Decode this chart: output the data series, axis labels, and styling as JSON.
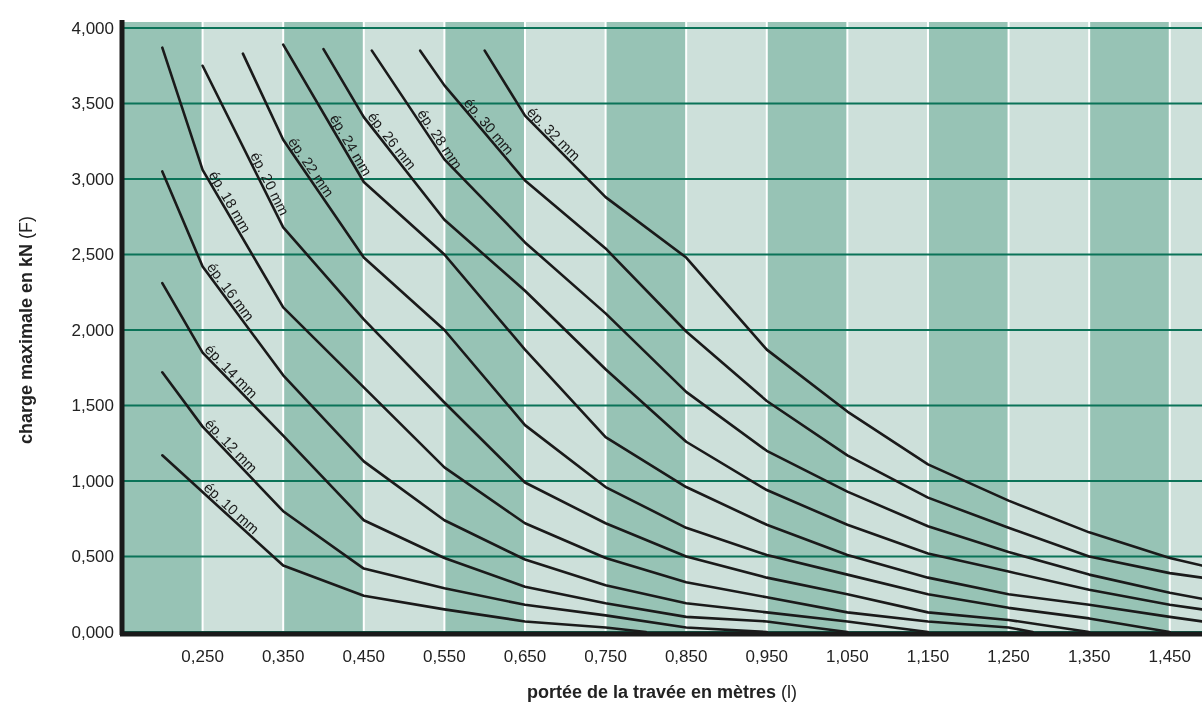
{
  "chart_data": {
    "type": "line",
    "xlabel": "portée de la travée en mètres (l)",
    "ylabel": "charge maximale en kN (F)",
    "xlim": [
      0.15,
      1.49
    ],
    "ylim": [
      0,
      4
    ],
    "xticks": [
      {
        "value": 0.25,
        "label": "0,250"
      },
      {
        "value": 0.35,
        "label": "0,350"
      },
      {
        "value": 0.45,
        "label": "0,450"
      },
      {
        "value": 0.55,
        "label": "0,550"
      },
      {
        "value": 0.65,
        "label": "0,650"
      },
      {
        "value": 0.75,
        "label": "0,750"
      },
      {
        "value": 0.85,
        "label": "0,850"
      },
      {
        "value": 0.95,
        "label": "0,950"
      },
      {
        "value": 1.05,
        "label": "1,050"
      },
      {
        "value": 1.15,
        "label": "1,150"
      },
      {
        "value": 1.25,
        "label": "1,250"
      },
      {
        "value": 1.35,
        "label": "1,350"
      },
      {
        "value": 1.45,
        "label": "1,450"
      }
    ],
    "yticks": [
      {
        "value": 0,
        "label": "0,000"
      },
      {
        "value": 0.5,
        "label": "0,500"
      },
      {
        "value": 1,
        "label": "1,000"
      },
      {
        "value": 1.5,
        "label": "1,500"
      },
      {
        "value": 2,
        "label": "2,000"
      },
      {
        "value": 2.5,
        "label": "2,500"
      },
      {
        "value": 3,
        "label": "3,000"
      },
      {
        "value": 3.5,
        "label": "3,500"
      },
      {
        "value": 4,
        "label": "4,000"
      }
    ],
    "grid": true,
    "marker": "none",
    "line_style": "solid",
    "bands": [
      {
        "axis": "x",
        "from": 0.15,
        "to": 0.25,
        "color": "#97c3b5"
      },
      {
        "axis": "x",
        "from": 0.35,
        "to": 0.45,
        "color": "#97c3b5"
      },
      {
        "axis": "x",
        "from": 0.55,
        "to": 0.65,
        "color": "#97c3b5"
      },
      {
        "axis": "x",
        "from": 0.75,
        "to": 0.85,
        "color": "#97c3b5"
      },
      {
        "axis": "x",
        "from": 0.95,
        "to": 1.05,
        "color": "#97c3b5"
      },
      {
        "axis": "x",
        "from": 1.15,
        "to": 1.25,
        "color": "#97c3b5"
      },
      {
        "axis": "x",
        "from": 1.35,
        "to": 1.45,
        "color": "#97c3b5"
      }
    ],
    "series": [
      {
        "name": "ép. 10 mm",
        "color": "#1a1a1a",
        "x": [
          0.2,
          0.35,
          0.45,
          0.55,
          0.65,
          0.75,
          0.8
        ],
        "values": [
          1.17,
          0.44,
          0.24,
          0.15,
          0.07,
          0.03,
          0
        ]
      },
      {
        "name": "ép. 12 mm",
        "color": "#1a1a1a",
        "x": [
          0.2,
          0.25,
          0.35,
          0.45,
          0.55,
          0.65,
          0.75,
          0.85,
          0.95
        ],
        "values": [
          1.72,
          1.36,
          0.8,
          0.42,
          0.29,
          0.18,
          0.11,
          0.03,
          0
        ]
      },
      {
        "name": "ép. 14 mm",
        "color": "#1a1a1a",
        "x": [
          0.2,
          0.25,
          0.35,
          0.45,
          0.55,
          0.65,
          0.75,
          0.85,
          0.95,
          1.05
        ],
        "values": [
          2.31,
          1.85,
          1.3,
          0.74,
          0.49,
          0.3,
          0.19,
          0.1,
          0.07,
          0
        ]
      },
      {
        "name": "ép. 16 mm",
        "color": "#1a1a1a",
        "x": [
          0.2,
          0.25,
          0.35,
          0.45,
          0.55,
          0.65,
          0.75,
          0.85,
          0.95,
          1.05,
          1.15
        ],
        "values": [
          3.05,
          2.42,
          1.7,
          1.13,
          0.74,
          0.48,
          0.31,
          0.19,
          0.13,
          0.07,
          0
        ]
      },
      {
        "name": "ép. 18 mm",
        "color": "#1a1a1a",
        "x": [
          0.2,
          0.25,
          0.35,
          0.45,
          0.55,
          0.65,
          0.75,
          0.85,
          0.95,
          1.05,
          1.15,
          1.25,
          1.28
        ],
        "values": [
          3.87,
          3.06,
          2.15,
          1.62,
          1.09,
          0.72,
          0.49,
          0.33,
          0.23,
          0.13,
          0.07,
          0.03,
          0
        ]
      },
      {
        "name": "ép. 20 mm",
        "color": "#1a1a1a",
        "x": [
          0.25,
          0.35,
          0.45,
          0.55,
          0.65,
          0.75,
          0.85,
          0.95,
          1.05,
          1.15,
          1.25,
          1.35
        ],
        "values": [
          3.75,
          2.68,
          2.07,
          1.52,
          0.99,
          0.72,
          0.5,
          0.36,
          0.25,
          0.13,
          0.08,
          0
        ]
      },
      {
        "name": "ép. 22 mm",
        "color": "#1a1a1a",
        "x": [
          0.3,
          0.35,
          0.45,
          0.55,
          0.65,
          0.75,
          0.85,
          0.95,
          1.05,
          1.15,
          1.25,
          1.35,
          1.45
        ],
        "values": [
          3.83,
          3.26,
          2.48,
          2.0,
          1.37,
          0.96,
          0.69,
          0.51,
          0.38,
          0.25,
          0.16,
          0.09,
          0
        ]
      },
      {
        "name": "ép. 24 mm",
        "color": "#1a1a1a",
        "x": [
          0.35,
          0.45,
          0.55,
          0.65,
          0.75,
          0.85,
          0.95,
          1.05,
          1.15,
          1.25,
          1.35,
          1.45,
          1.49
        ],
        "values": [
          3.89,
          2.98,
          2.5,
          1.87,
          1.29,
          0.96,
          0.71,
          0.51,
          0.36,
          0.25,
          0.18,
          0.1,
          0.07
        ]
      },
      {
        "name": "ép. 26 mm",
        "color": "#1a1a1a",
        "x": [
          0.4,
          0.45,
          0.55,
          0.65,
          0.75,
          0.85,
          0.95,
          1.05,
          1.15,
          1.25,
          1.35,
          1.45,
          1.49
        ],
        "values": [
          3.86,
          3.41,
          2.73,
          2.26,
          1.74,
          1.26,
          0.94,
          0.71,
          0.52,
          0.4,
          0.28,
          0.18,
          0.15
        ]
      },
      {
        "name": "ép. 28 mm",
        "color": "#1a1a1a",
        "x": [
          0.46,
          0.55,
          0.65,
          0.75,
          0.85,
          0.95,
          1.05,
          1.15,
          1.25,
          1.35,
          1.45,
          1.49
        ],
        "values": [
          3.85,
          3.13,
          2.58,
          2.11,
          1.59,
          1.2,
          0.93,
          0.7,
          0.53,
          0.38,
          0.26,
          0.22
        ]
      },
      {
        "name": "ép. 30 mm",
        "color": "#1a1a1a",
        "x": [
          0.52,
          0.55,
          0.65,
          0.75,
          0.85,
          0.95,
          1.05,
          1.15,
          1.25,
          1.35,
          1.45,
          1.49
        ],
        "values": [
          3.85,
          3.62,
          2.99,
          2.54,
          1.99,
          1.53,
          1.17,
          0.89,
          0.69,
          0.5,
          0.39,
          0.36
        ]
      },
      {
        "name": "ép. 32 mm",
        "color": "#1a1a1a",
        "x": [
          0.6,
          0.65,
          0.75,
          0.85,
          0.95,
          1.05,
          1.15,
          1.25,
          1.35,
          1.45,
          1.49
        ],
        "values": [
          3.85,
          3.42,
          2.88,
          2.48,
          1.87,
          1.46,
          1.11,
          0.87,
          0.66,
          0.49,
          0.44
        ]
      }
    ]
  }
}
